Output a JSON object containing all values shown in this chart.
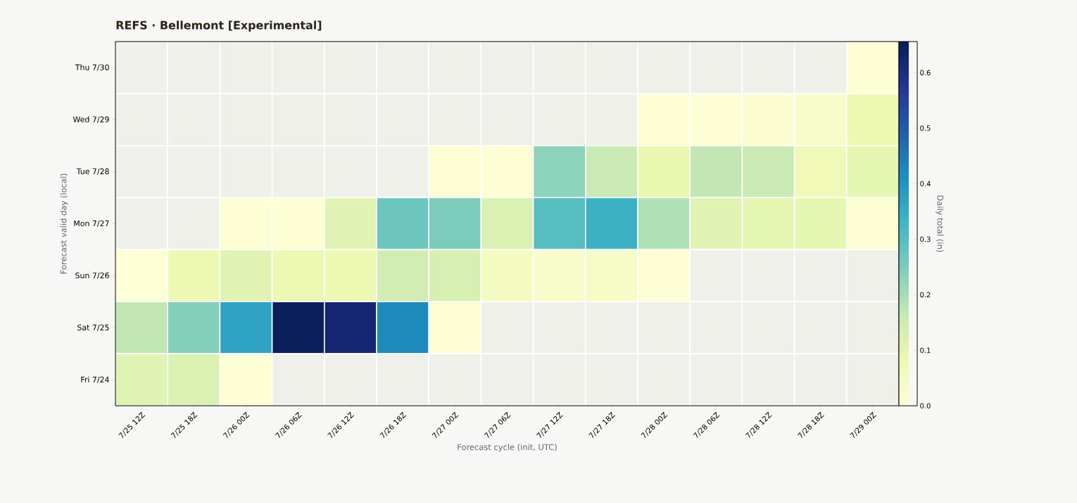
{
  "chart_data": {
    "type": "heatmap",
    "title": "REFS · Bellemont [Experimental]",
    "xlabel": "Forecast cycle (init, UTC)",
    "ylabel": "Forecast valid day (local)",
    "clabel": "Daily total (in)",
    "categories": [
      "7/25 12Z",
      "7/25 18Z",
      "7/26 00Z",
      "7/26 06Z",
      "7/26 12Z",
      "7/26 18Z",
      "7/27 00Z",
      "7/27 06Z",
      "7/27 12Z",
      "7/27 18Z",
      "7/28 00Z",
      "7/28 06Z",
      "7/28 12Z",
      "7/28 18Z",
      "7/29 00Z"
    ],
    "y_categories": [
      "Thu 7/30",
      "Wed 7/29",
      "Tue 7/28",
      "Mon 7/27",
      "Sun 7/26",
      "Sat 7/25",
      "Fri 7/24"
    ],
    "cells": [
      [
        null,
        null,
        null,
        null,
        null,
        null,
        null,
        null,
        null,
        null,
        null,
        null,
        null,
        null,
        0.01
      ],
      [
        null,
        null,
        null,
        null,
        null,
        null,
        null,
        null,
        null,
        null,
        0.01,
        0.01,
        0.02,
        0.03,
        0.08
      ],
      [
        null,
        null,
        null,
        null,
        null,
        null,
        0.01,
        0.01,
        0.23,
        0.16,
        0.09,
        0.17,
        0.16,
        0.07,
        0.1
      ],
      [
        null,
        null,
        0.01,
        0.01,
        0.11,
        0.27,
        0.25,
        0.12,
        0.3,
        0.34,
        0.19,
        0.11,
        0.1,
        0.1,
        0.01
      ],
      [
        0.005,
        0.08,
        0.11,
        0.08,
        0.08,
        0.14,
        0.13,
        0.05,
        0.03,
        0.04,
        0.01,
        null,
        null,
        null,
        null
      ],
      [
        0.17,
        0.24,
        0.37,
        0.65,
        0.62,
        0.42,
        0.01,
        null,
        null,
        null,
        null,
        null,
        null,
        null,
        null
      ],
      [
        0.11,
        0.12,
        0.01,
        null,
        null,
        null,
        null,
        null,
        null,
        null,
        null,
        null,
        null,
        null,
        null
      ]
    ],
    "clim": [
      0,
      0.656
    ],
    "cticks": [
      {
        "value": 0,
        "label": "0.0"
      },
      0.1,
      0.2,
      0.3,
      0.4,
      0.5,
      0.6
    ]
  }
}
